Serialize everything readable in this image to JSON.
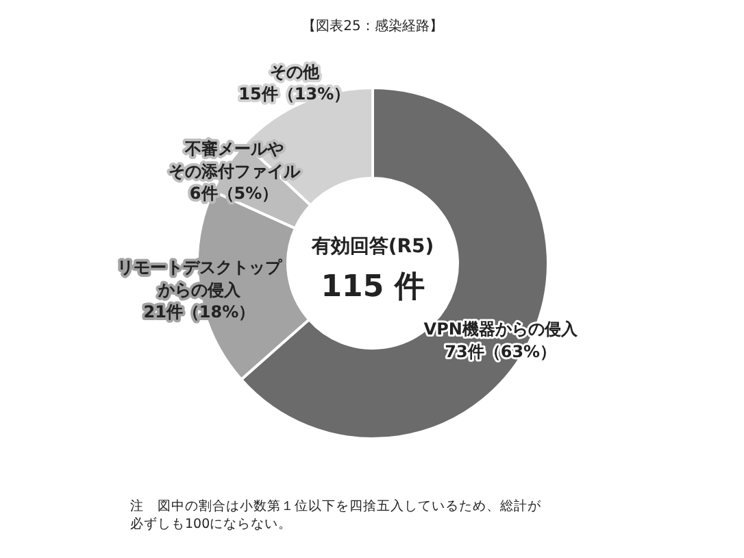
{
  "chart_data": {
    "type": "donut",
    "title": "【図表25：感染経路】",
    "categories": [
      "VPN機器からの侵入",
      "リモートデスクトップからの侵入",
      "不審メールやその添付ファイル",
      "その他"
    ],
    "values": [
      73,
      21,
      6,
      15
    ],
    "colors": [
      "#6b6b6b",
      "#a3a3a3",
      "#bdbdbd",
      "#d2d2d2"
    ],
    "value_labels": [
      "73件（63%）",
      "21件（18%）",
      "6件（5%）",
      "15件（13%）"
    ],
    "annotations": [
      "有効回答(R5)",
      "115 件",
      "注　図中の割合は小数第１位以下を四捨五入しているため、総計が必ずしも100にならない。"
    ]
  }
}
